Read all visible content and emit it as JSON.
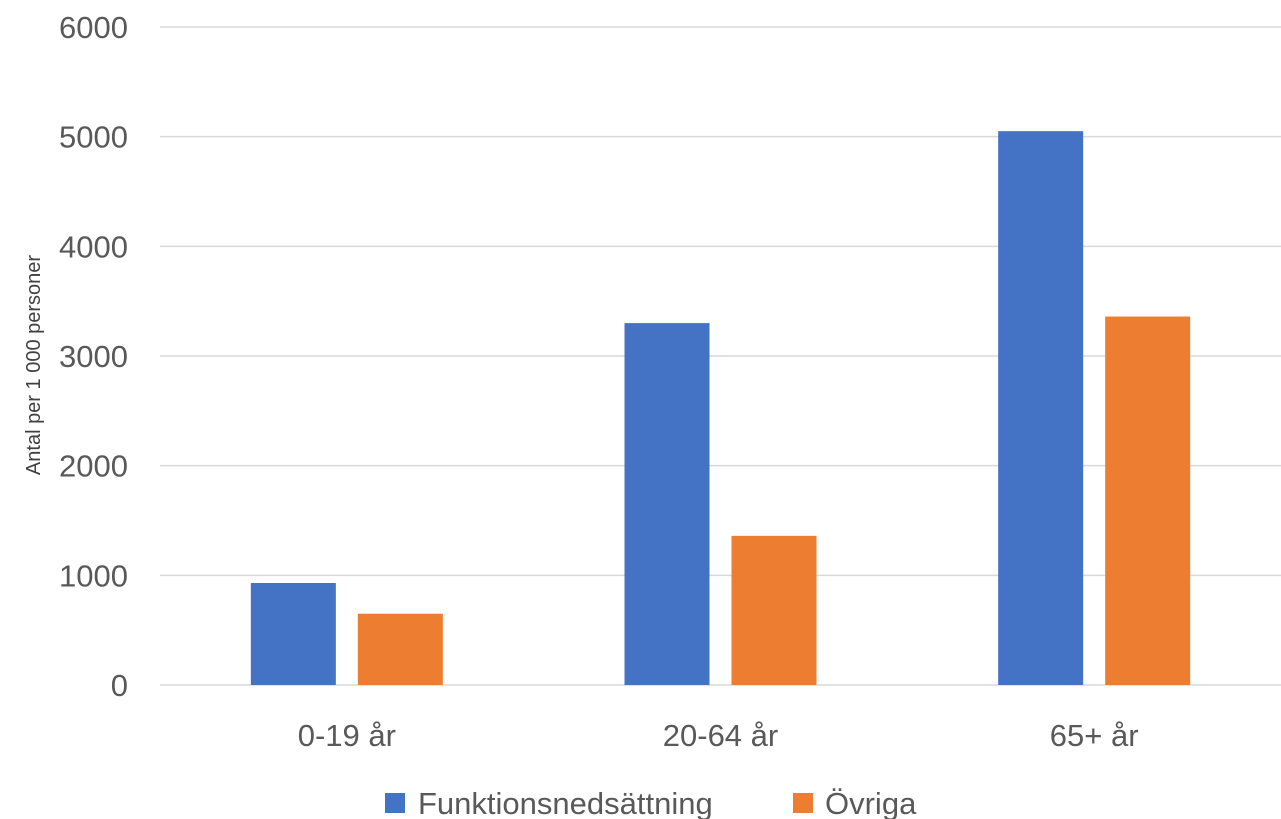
{
  "chart_data": {
    "type": "bar",
    "title": "",
    "xlabel": "",
    "ylabel": "Antal per 1 000 personer",
    "ylim": [
      0,
      6000
    ],
    "yticks": [
      0,
      1000,
      2000,
      3000,
      4000,
      5000,
      6000
    ],
    "grid": true,
    "legend_position": "bottom",
    "categories": [
      "0-19 år",
      "20-64 år",
      "65+ år"
    ],
    "series": [
      {
        "name": "Funktionsnedsättning",
        "color": "#4472c4",
        "values": [
          930,
          3300,
          5050
        ]
      },
      {
        "name": "Övriga",
        "color": "#ed7d31",
        "values": [
          650,
          1360,
          3360
        ]
      }
    ]
  }
}
